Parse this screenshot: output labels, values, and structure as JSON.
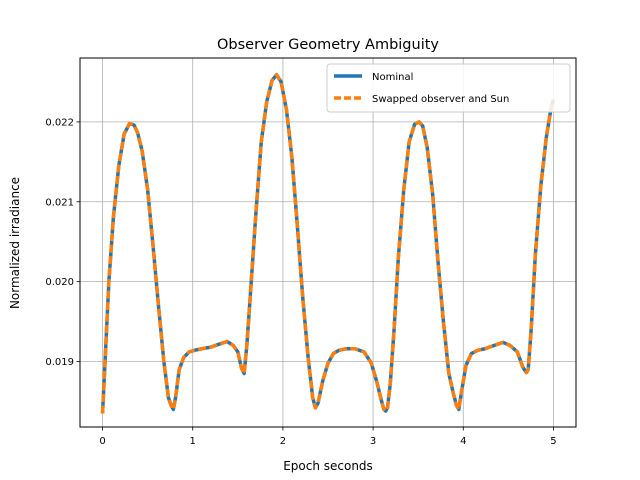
{
  "chart_data": {
    "type": "line",
    "title": "Observer Geometry Ambiguity",
    "xlabel": "Epoch seconds",
    "ylabel": "Normalized irradiance",
    "xlim": [
      -0.25,
      5.25
    ],
    "ylim": [
      0.01818,
      0.0228
    ],
    "xticks": [
      0,
      1,
      2,
      3,
      4,
      5
    ],
    "xtick_labels": [
      "0",
      "1",
      "2",
      "3",
      "4",
      "5"
    ],
    "yticks": [
      0.019,
      0.02,
      0.021,
      0.022
    ],
    "ytick_labels": [
      "0.019",
      "0.020",
      "0.021",
      "0.022"
    ],
    "grid": true,
    "legend_position": "top-right",
    "series": [
      {
        "name": "Nominal",
        "color": "#1f77b4",
        "style": "solid",
        "x": [
          0,
          0.03,
          0.07,
          0.12,
          0.18,
          0.24,
          0.3,
          0.35,
          0.39,
          0.44,
          0.5,
          0.56,
          0.62,
          0.68,
          0.73,
          0.76,
          0.785,
          0.81,
          0.85,
          0.9,
          0.96,
          1.02,
          1.1,
          1.2,
          1.3,
          1.38,
          1.45,
          1.5,
          1.54,
          1.57,
          1.6,
          1.64,
          1.7,
          1.76,
          1.82,
          1.88,
          1.93,
          1.98,
          2.04,
          2.1,
          2.16,
          2.22,
          2.28,
          2.33,
          2.36,
          2.39,
          2.44,
          2.5,
          2.56,
          2.62,
          2.7,
          2.8,
          2.9,
          2.98,
          3.04,
          3.09,
          3.12,
          3.14,
          3.16,
          3.19,
          3.23,
          3.28,
          3.34,
          3.4,
          3.46,
          3.51,
          3.55,
          3.6,
          3.66,
          3.72,
          3.78,
          3.84,
          3.89,
          3.925,
          3.95,
          3.98,
          4.03,
          4.09,
          4.16,
          4.24,
          4.34,
          4.44,
          4.52,
          4.6,
          4.66,
          4.7,
          4.72,
          4.75,
          4.8,
          4.86,
          4.92,
          4.97,
          5.0
        ],
        "values": [
          0.01835,
          0.01905,
          0.02,
          0.0208,
          0.02145,
          0.02185,
          0.02198,
          0.02196,
          0.02186,
          0.02163,
          0.02115,
          0.02045,
          0.0197,
          0.019,
          0.01855,
          0.01845,
          0.0184,
          0.01855,
          0.0189,
          0.01905,
          0.01912,
          0.01914,
          0.01916,
          0.01918,
          0.01922,
          0.01925,
          0.0192,
          0.01912,
          0.01892,
          0.01885,
          0.0192,
          0.01985,
          0.02085,
          0.02175,
          0.02225,
          0.02252,
          0.02259,
          0.0225,
          0.02215,
          0.02155,
          0.0207,
          0.0198,
          0.01905,
          0.01855,
          0.01842,
          0.01848,
          0.01875,
          0.01898,
          0.0191,
          0.01914,
          0.01916,
          0.01916,
          0.01912,
          0.01898,
          0.01875,
          0.01852,
          0.0184,
          0.01838,
          0.01842,
          0.01872,
          0.01935,
          0.0203,
          0.02115,
          0.02175,
          0.02197,
          0.022,
          0.02195,
          0.02168,
          0.0211,
          0.02025,
          0.0195,
          0.01885,
          0.0186,
          0.01845,
          0.0184,
          0.01862,
          0.01895,
          0.0191,
          0.01914,
          0.01916,
          0.0192,
          0.01924,
          0.0192,
          0.01912,
          0.01893,
          0.01886,
          0.0189,
          0.01935,
          0.02035,
          0.0212,
          0.0218,
          0.02215,
          0.02228
        ]
      },
      {
        "name": "Swapped observer and Sun",
        "color": "#ff7f0e",
        "style": "dashed",
        "x": [
          0,
          0.03,
          0.07,
          0.12,
          0.18,
          0.24,
          0.3,
          0.35,
          0.39,
          0.44,
          0.5,
          0.56,
          0.62,
          0.68,
          0.73,
          0.76,
          0.785,
          0.81,
          0.85,
          0.9,
          0.96,
          1.02,
          1.1,
          1.2,
          1.3,
          1.38,
          1.45,
          1.5,
          1.54,
          1.57,
          1.6,
          1.64,
          1.7,
          1.76,
          1.82,
          1.88,
          1.93,
          1.98,
          2.04,
          2.1,
          2.16,
          2.22,
          2.28,
          2.33,
          2.36,
          2.39,
          2.44,
          2.5,
          2.56,
          2.62,
          2.7,
          2.8,
          2.9,
          2.98,
          3.04,
          3.09,
          3.12,
          3.14,
          3.16,
          3.19,
          3.23,
          3.28,
          3.34,
          3.4,
          3.46,
          3.51,
          3.55,
          3.6,
          3.66,
          3.72,
          3.78,
          3.84,
          3.89,
          3.925,
          3.95,
          3.98,
          4.03,
          4.09,
          4.16,
          4.24,
          4.34,
          4.44,
          4.52,
          4.6,
          4.66,
          4.7,
          4.72,
          4.75,
          4.8,
          4.86,
          4.92,
          4.97,
          5.0
        ],
        "values": [
          0.01835,
          0.01905,
          0.02,
          0.0208,
          0.02145,
          0.02185,
          0.02198,
          0.02196,
          0.02186,
          0.02163,
          0.02115,
          0.02045,
          0.0197,
          0.019,
          0.01855,
          0.01845,
          0.0184,
          0.01855,
          0.0189,
          0.01905,
          0.01912,
          0.01914,
          0.01916,
          0.01918,
          0.01922,
          0.01925,
          0.0192,
          0.01912,
          0.01892,
          0.01885,
          0.0192,
          0.01985,
          0.02085,
          0.02175,
          0.02225,
          0.02252,
          0.02259,
          0.0225,
          0.02215,
          0.02155,
          0.0207,
          0.0198,
          0.01905,
          0.01855,
          0.01842,
          0.01848,
          0.01875,
          0.01898,
          0.0191,
          0.01914,
          0.01916,
          0.01916,
          0.01912,
          0.01898,
          0.01875,
          0.01852,
          0.0184,
          0.01838,
          0.01842,
          0.01872,
          0.01935,
          0.0203,
          0.02115,
          0.02175,
          0.02197,
          0.022,
          0.02195,
          0.02168,
          0.0211,
          0.02025,
          0.0195,
          0.01885,
          0.0186,
          0.01845,
          0.0184,
          0.01862,
          0.01895,
          0.0191,
          0.01914,
          0.01916,
          0.0192,
          0.01924,
          0.0192,
          0.01912,
          0.01893,
          0.01886,
          0.0189,
          0.01935,
          0.02035,
          0.0212,
          0.0218,
          0.02215,
          0.02228
        ]
      }
    ]
  }
}
